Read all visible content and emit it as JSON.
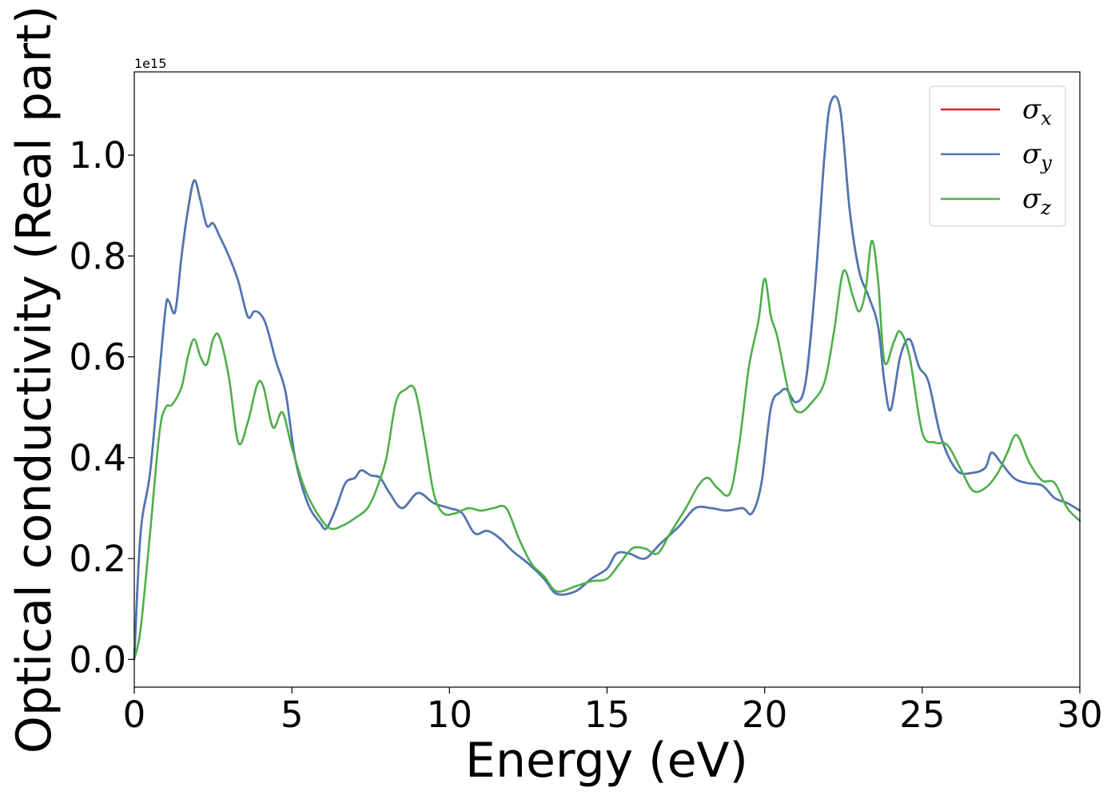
{
  "chart_data": {
    "type": "line",
    "xlabel": "Energy (eV)",
    "ylabel": "Optical conductivity (Real part)",
    "y_offset_text": "1e15",
    "xlim": [
      0,
      30
    ],
    "ylim": [
      -0.055,
      1.165
    ],
    "x_ticks": [
      0,
      5,
      10,
      15,
      20,
      25,
      30
    ],
    "x_tick_labels": [
      "0",
      "5",
      "10",
      "15",
      "20",
      "25",
      "30"
    ],
    "y_ticks": [
      0.0,
      0.2,
      0.4,
      0.6,
      0.8,
      1.0
    ],
    "y_tick_labels": [
      "0.0",
      "0.2",
      "0.4",
      "0.6",
      "0.8",
      "1.0"
    ],
    "grid": false,
    "legend_position": "top-right",
    "series": [
      {
        "name": "σx",
        "symbol": "σ",
        "subscript": "x",
        "color": "#d62728",
        "x": [
          0,
          0.2,
          0.5,
          0.8,
          1.0,
          1.1,
          1.3,
          1.5,
          1.7,
          1.9,
          2.1,
          2.3,
          2.5,
          2.7,
          3.0,
          3.3,
          3.6,
          3.8,
          4.0,
          4.2,
          4.5,
          4.8,
          5.1,
          5.5,
          5.9,
          6.1,
          6.4,
          6.7,
          7.0,
          7.2,
          7.5,
          7.8,
          8.1,
          8.5,
          9.0,
          9.5,
          10.0,
          10.4,
          10.8,
          11.2,
          11.6,
          12.0,
          12.5,
          13.0,
          13.4,
          14.0,
          14.5,
          15.0,
          15.3,
          15.7,
          16.2,
          16.7,
          17.3,
          17.8,
          18.3,
          18.8,
          19.3,
          19.6,
          19.9,
          20.2,
          20.5,
          20.7,
          21.0,
          21.3,
          21.6,
          21.9,
          22.1,
          22.4,
          22.7,
          23.0,
          23.3,
          23.6,
          23.8,
          24.0,
          24.3,
          24.6,
          24.9,
          25.2,
          25.6,
          26.1,
          26.6,
          27.0,
          27.2,
          27.5,
          27.9,
          28.3,
          28.8,
          29.2,
          29.6,
          30.0
        ],
        "y": [
          0.0,
          0.25,
          0.37,
          0.57,
          0.7,
          0.71,
          0.69,
          0.8,
          0.89,
          0.95,
          0.91,
          0.86,
          0.865,
          0.84,
          0.8,
          0.75,
          0.68,
          0.69,
          0.685,
          0.66,
          0.59,
          0.53,
          0.4,
          0.31,
          0.27,
          0.26,
          0.3,
          0.35,
          0.36,
          0.375,
          0.365,
          0.36,
          0.33,
          0.3,
          0.33,
          0.31,
          0.3,
          0.29,
          0.25,
          0.255,
          0.24,
          0.215,
          0.19,
          0.16,
          0.13,
          0.135,
          0.16,
          0.18,
          0.21,
          0.21,
          0.2,
          0.23,
          0.265,
          0.3,
          0.3,
          0.295,
          0.3,
          0.29,
          0.35,
          0.5,
          0.53,
          0.535,
          0.51,
          0.55,
          0.74,
          1.0,
          1.105,
          1.09,
          0.89,
          0.77,
          0.72,
          0.66,
          0.55,
          0.495,
          0.6,
          0.635,
          0.58,
          0.55,
          0.44,
          0.375,
          0.37,
          0.38,
          0.41,
          0.39,
          0.36,
          0.35,
          0.345,
          0.32,
          0.31,
          0.295
        ]
      },
      {
        "name": "σy",
        "symbol": "σ",
        "subscript": "y",
        "color": "#4a78b5",
        "x": [
          0,
          0.2,
          0.5,
          0.8,
          1.0,
          1.1,
          1.3,
          1.5,
          1.7,
          1.9,
          2.1,
          2.3,
          2.5,
          2.7,
          3.0,
          3.3,
          3.6,
          3.8,
          4.0,
          4.2,
          4.5,
          4.8,
          5.1,
          5.5,
          5.9,
          6.1,
          6.4,
          6.7,
          7.0,
          7.2,
          7.5,
          7.8,
          8.1,
          8.5,
          9.0,
          9.5,
          10.0,
          10.4,
          10.8,
          11.2,
          11.6,
          12.0,
          12.5,
          13.0,
          13.4,
          14.0,
          14.5,
          15.0,
          15.3,
          15.7,
          16.2,
          16.7,
          17.3,
          17.8,
          18.3,
          18.8,
          19.3,
          19.6,
          19.9,
          20.2,
          20.5,
          20.7,
          21.0,
          21.3,
          21.6,
          21.9,
          22.1,
          22.4,
          22.7,
          23.0,
          23.3,
          23.6,
          23.8,
          24.0,
          24.3,
          24.6,
          24.9,
          25.2,
          25.6,
          26.1,
          26.6,
          27.0,
          27.2,
          27.5,
          27.9,
          28.3,
          28.8,
          29.2,
          29.6,
          30.0
        ],
        "y": [
          0.0,
          0.25,
          0.37,
          0.57,
          0.7,
          0.71,
          0.69,
          0.8,
          0.89,
          0.95,
          0.91,
          0.86,
          0.865,
          0.84,
          0.8,
          0.75,
          0.68,
          0.69,
          0.685,
          0.66,
          0.59,
          0.53,
          0.4,
          0.31,
          0.27,
          0.26,
          0.3,
          0.35,
          0.36,
          0.375,
          0.365,
          0.36,
          0.33,
          0.3,
          0.33,
          0.31,
          0.3,
          0.29,
          0.25,
          0.255,
          0.24,
          0.215,
          0.19,
          0.16,
          0.13,
          0.135,
          0.16,
          0.18,
          0.21,
          0.21,
          0.2,
          0.23,
          0.265,
          0.3,
          0.3,
          0.295,
          0.3,
          0.29,
          0.35,
          0.5,
          0.53,
          0.535,
          0.51,
          0.55,
          0.74,
          1.0,
          1.105,
          1.09,
          0.89,
          0.77,
          0.72,
          0.66,
          0.55,
          0.495,
          0.6,
          0.635,
          0.58,
          0.55,
          0.44,
          0.375,
          0.37,
          0.38,
          0.41,
          0.39,
          0.36,
          0.35,
          0.345,
          0.32,
          0.31,
          0.295
        ]
      },
      {
        "name": "σz",
        "symbol": "σ",
        "subscript": "z",
        "color": "#4daf4a",
        "x": [
          0,
          0.2,
          0.5,
          0.8,
          1.0,
          1.2,
          1.5,
          1.7,
          1.9,
          2.1,
          2.3,
          2.5,
          2.7,
          3.0,
          3.3,
          3.6,
          3.9,
          4.1,
          4.4,
          4.7,
          5.0,
          5.4,
          5.8,
          6.2,
          6.6,
          7.0,
          7.4,
          7.7,
          8.0,
          8.3,
          8.6,
          8.9,
          9.2,
          9.5,
          9.8,
          10.2,
          10.6,
          11.0,
          11.4,
          11.8,
          12.2,
          12.6,
          13.0,
          13.4,
          14.0,
          14.5,
          15.0,
          15.4,
          15.8,
          16.2,
          16.6,
          17.0,
          17.5,
          17.9,
          18.2,
          18.5,
          18.9,
          19.2,
          19.5,
          19.8,
          20.0,
          20.2,
          20.4,
          20.8,
          21.1,
          21.5,
          21.9,
          22.2,
          22.5,
          22.8,
          23.0,
          23.2,
          23.4,
          23.6,
          23.8,
          24.1,
          24.3,
          24.6,
          25.0,
          25.4,
          25.8,
          26.2,
          26.6,
          27.0,
          27.4,
          27.7,
          28.0,
          28.4,
          28.8,
          29.2,
          29.6,
          30.0
        ],
        "y": [
          0.0,
          0.06,
          0.25,
          0.45,
          0.5,
          0.505,
          0.54,
          0.6,
          0.635,
          0.6,
          0.585,
          0.635,
          0.64,
          0.56,
          0.43,
          0.47,
          0.545,
          0.54,
          0.46,
          0.49,
          0.42,
          0.34,
          0.29,
          0.26,
          0.265,
          0.28,
          0.3,
          0.34,
          0.4,
          0.51,
          0.535,
          0.535,
          0.44,
          0.33,
          0.29,
          0.29,
          0.3,
          0.295,
          0.3,
          0.3,
          0.24,
          0.19,
          0.165,
          0.135,
          0.145,
          0.155,
          0.16,
          0.19,
          0.22,
          0.22,
          0.21,
          0.25,
          0.3,
          0.345,
          0.36,
          0.34,
          0.33,
          0.43,
          0.58,
          0.67,
          0.755,
          0.68,
          0.64,
          0.52,
          0.49,
          0.51,
          0.55,
          0.65,
          0.77,
          0.72,
          0.69,
          0.73,
          0.83,
          0.75,
          0.59,
          0.63,
          0.65,
          0.6,
          0.45,
          0.43,
          0.425,
          0.38,
          0.335,
          0.34,
          0.37,
          0.41,
          0.445,
          0.39,
          0.355,
          0.35,
          0.3,
          0.275
        ]
      }
    ]
  }
}
